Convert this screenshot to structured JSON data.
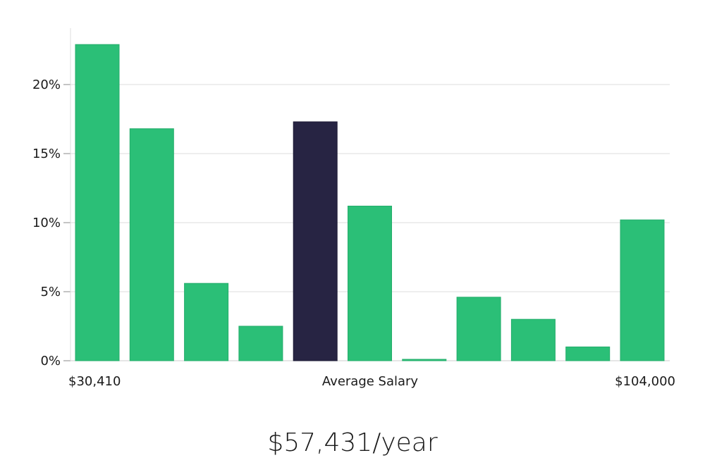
{
  "chart_data": {
    "type": "bar",
    "categories": [
      "1",
      "2",
      "3",
      "4",
      "5",
      "6",
      "7",
      "8",
      "9",
      "10",
      "11"
    ],
    "values": [
      22.9,
      16.8,
      5.6,
      2.5,
      17.3,
      11.2,
      0.1,
      4.6,
      3.0,
      1.0,
      10.2
    ],
    "highlight_index": 4,
    "ylim": [
      0,
      24
    ],
    "yticks": [
      0,
      5,
      10,
      15,
      20
    ],
    "ytick_labels": [
      "0%",
      "5%",
      "10%",
      "15%",
      "20%"
    ],
    "x_left_label": "$30,410",
    "x_center_label": "Average Salary",
    "x_right_label": "$104,000",
    "grid": true,
    "colors": {
      "bar": "#2bbf77",
      "highlight": "#272443",
      "grid": "#dddddd",
      "axis": "#cccccc"
    }
  },
  "salary": {
    "text": "$57,431/year"
  }
}
